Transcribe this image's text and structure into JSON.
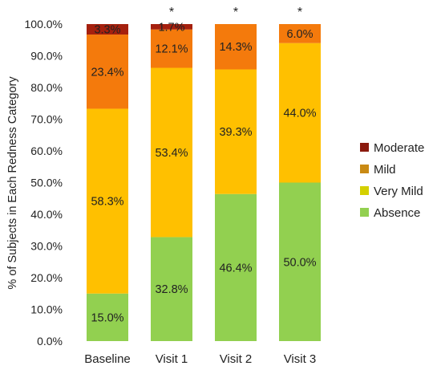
{
  "chart_data": {
    "type": "bar",
    "stacked": true,
    "categories": [
      "Baseline",
      "Visit 1",
      "Visit 2",
      "Visit 3"
    ],
    "ylabel": "% of Subjects in Each Redness Category",
    "xlabel": "",
    "ylim": [
      0,
      100
    ],
    "yticks": [
      "0.0%",
      "10.0%",
      "20.0%",
      "30.0%",
      "40.0%",
      "50.0%",
      "60.0%",
      "70.0%",
      "80.0%",
      "90.0%",
      "100.0%"
    ],
    "grid": false,
    "legend_position": "right",
    "significance_markers": [
      "",
      "*",
      "*",
      "*"
    ],
    "series": [
      {
        "name": "Absence",
        "color": "#92D050",
        "values": [
          15.0,
          32.8,
          46.4,
          50.0
        ],
        "labels": [
          "15.0%",
          "32.8%",
          "46.4%",
          "50.0%"
        ]
      },
      {
        "name": "Very Mild",
        "color": "#FFC000",
        "values": [
          58.3,
          53.4,
          39.3,
          44.0
        ],
        "labels": [
          "58.3%",
          "53.4%",
          "39.3%",
          "44.0%"
        ]
      },
      {
        "name": "Mild",
        "color": "#F47A0C",
        "values": [
          23.4,
          12.1,
          14.3,
          6.0
        ],
        "labels": [
          "23.4%",
          "12.1%",
          "14.3%",
          "6.0%"
        ]
      },
      {
        "name": "Moderate",
        "color": "#A5200E",
        "values": [
          3.3,
          1.7,
          0,
          0
        ],
        "labels": [
          "3.3%",
          "1.7%",
          "",
          ""
        ]
      }
    ],
    "legend": [
      {
        "name": "Moderate",
        "color": "#8B1A0E"
      },
      {
        "name": "Mild",
        "color": "#C98A14"
      },
      {
        "name": "Very Mild",
        "color": "#D4D000"
      },
      {
        "name": "Absence",
        "color": "#92D050"
      }
    ]
  }
}
